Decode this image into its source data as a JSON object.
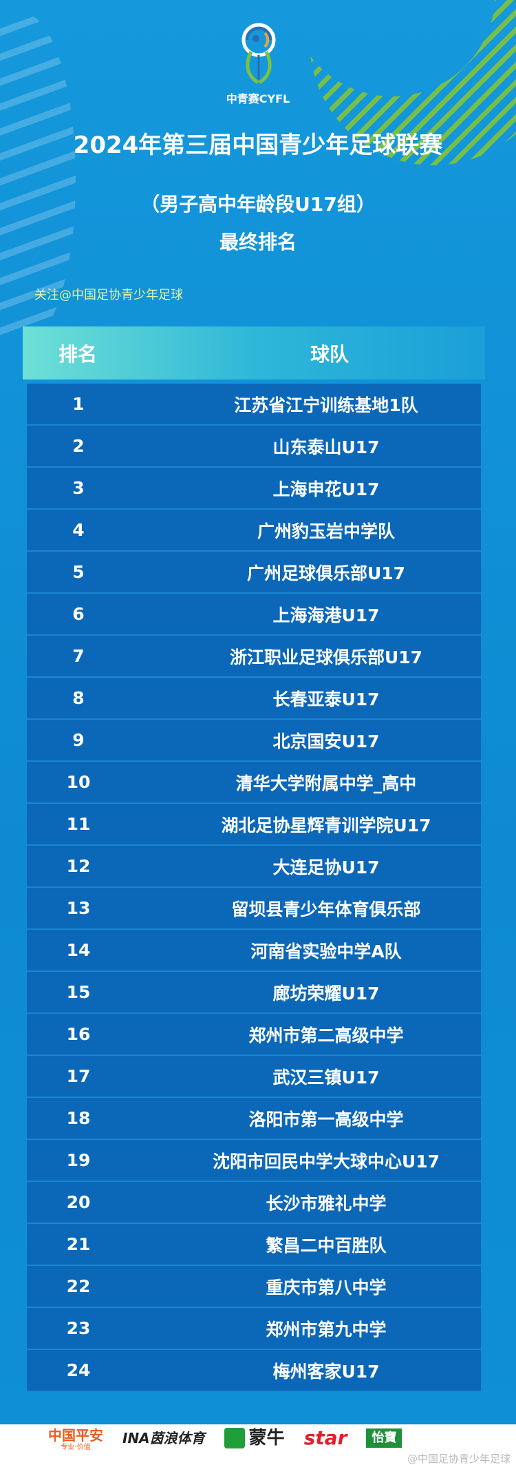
{
  "header": {
    "logo_text": "中青赛CYFL",
    "title": "2024年第三届中国青少年足球联赛",
    "subtitle": "（男子高中年龄段U17组）",
    "subtitle2": "最终排名",
    "follow": "关注@中国足协青少年足球"
  },
  "table": {
    "headers": [
      "排名",
      "球队"
    ],
    "rows": [
      [
        "1",
        "江苏省江宁训练基地1队"
      ],
      [
        "2",
        "山东泰山U17"
      ],
      [
        "3",
        "上海申花U17"
      ],
      [
        "4",
        "广州豹玉岩中学队"
      ],
      [
        "5",
        "广州足球俱乐部U17"
      ],
      [
        "6",
        "上海海港U17"
      ],
      [
        "7",
        "浙江职业足球俱乐部U17"
      ],
      [
        "8",
        "长春亚泰U17"
      ],
      [
        "9",
        "北京国安U17"
      ],
      [
        "10",
        "清华大学附属中学_高中"
      ],
      [
        "11",
        "湖北足协星辉青训学院U17"
      ],
      [
        "12",
        "大连足协U17"
      ],
      [
        "13",
        "留坝县青少年体育俱乐部"
      ],
      [
        "14",
        "河南省实验中学A队"
      ],
      [
        "15",
        "廊坊荣耀U17"
      ],
      [
        "16",
        "郑州市第二高级中学"
      ],
      [
        "17",
        "武汉三镇U17"
      ],
      [
        "18",
        "洛阳市第一高级中学"
      ],
      [
        "19",
        "沈阳市回民中学大球中心U17"
      ],
      [
        "20",
        "长沙市雅礼中学"
      ],
      [
        "21",
        "繁昌二中百胜队"
      ],
      [
        "22",
        "重庆市第八中学"
      ],
      [
        "23",
        "郑州市第九中学"
      ],
      [
        "24",
        "梅州客家U17"
      ]
    ]
  },
  "sponsors": [
    {
      "name": "中国平安",
      "tagline": "专业·价值",
      "color": "#f05a1a"
    },
    {
      "name": "INA茵浪体育",
      "color": "#222222"
    },
    {
      "name": "蒙牛",
      "color": "#1f9e3a"
    },
    {
      "name": "star",
      "color": "#e0202a"
    },
    {
      "name": "怡寶",
      "color": "#1f8f3a"
    }
  ],
  "watermark": "@中国足协青少年足球"
}
